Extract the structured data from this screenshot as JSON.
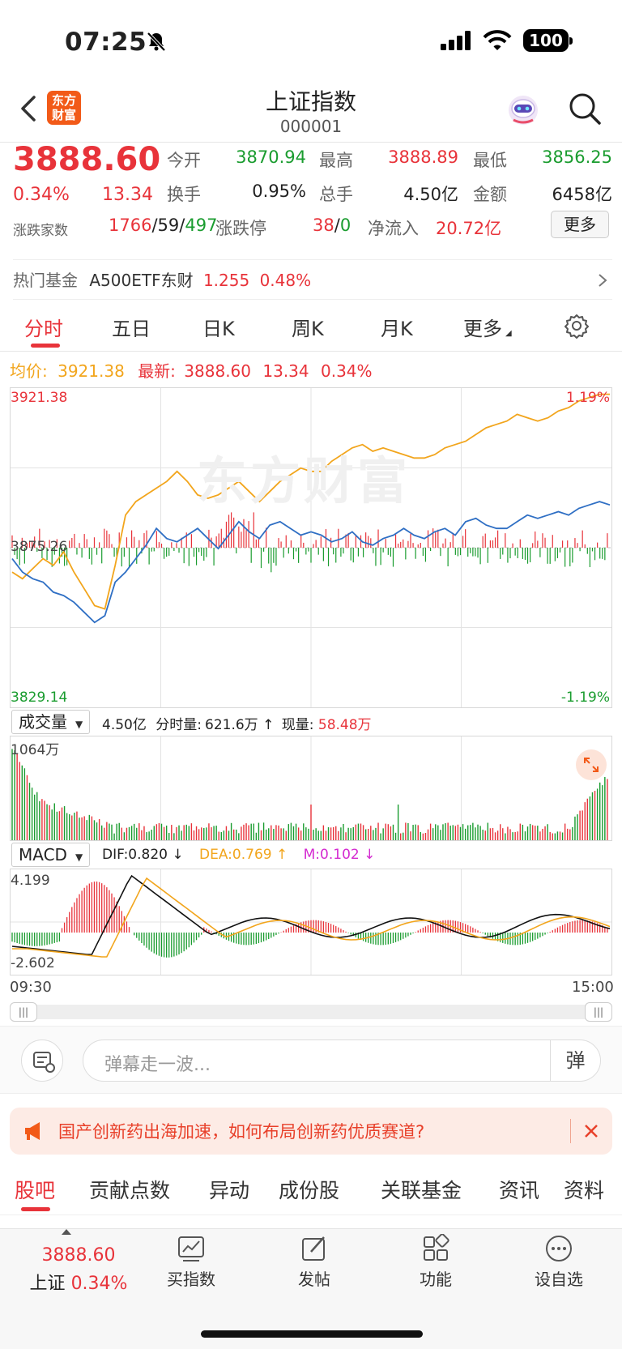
{
  "status_bar": {
    "time": "07:25",
    "battery": "100"
  },
  "header": {
    "title": "上证指数",
    "code": "000001",
    "logo_text": "东方财富"
  },
  "quote": {
    "price": "3888.60",
    "change_pct": "0.34%",
    "change": "13.34",
    "open_label": "今开",
    "open": "3870.94",
    "high_label": "最高",
    "high": "3888.89",
    "low_label": "最低",
    "low": "3856.25",
    "turnover_label": "换手",
    "turnover": "0.95%",
    "volume_label": "总手",
    "volume": "4.50亿",
    "amount_label": "金额",
    "amount": "6458亿",
    "breadth_label": "涨跌家数",
    "up_count": "1766",
    "flat_count": "59",
    "down_count": "497",
    "limit_label": "涨跌停",
    "limit_up": "38",
    "limit_down": "0",
    "netflow_label": "净流入",
    "netflow": "20.72亿",
    "more_button": "更多"
  },
  "hot_fund": {
    "label": "热门基金",
    "name": "A500ETF东财",
    "price": "1.255",
    "pct": "0.48%"
  },
  "chart_tabs": [
    "分时",
    "五日",
    "日K",
    "周K",
    "月K",
    "更多"
  ],
  "avg_line": {
    "avg_label": "均价:",
    "avg": "3921.38",
    "latest_label": "最新:",
    "latest": "3888.60",
    "change": "13.34",
    "pct": "0.34%"
  },
  "volume_panel": {
    "selector": "成交量",
    "total": "4.50亿",
    "minute_label": "分时量:",
    "minute": "621.6万",
    "arrow": "↑",
    "current_label": "现量:",
    "current": "58.48万",
    "max_label": "1064万"
  },
  "macd_panel": {
    "selector": "MACD",
    "dif": "DIF:0.820 ↓",
    "dea": "DEA:0.769 ↑",
    "m": "M:0.102 ↓",
    "max_label": "4.199",
    "min_label": "-2.602"
  },
  "time_axis": {
    "start": "09:30",
    "end": "15:00"
  },
  "colors": {
    "up": "#e8333a",
    "down": "#1a9c2f",
    "avg_line": "#f2a51c",
    "price_line": "#2f6fc4",
    "accent": "#f25a18"
  },
  "chart_data": {
    "type": "line",
    "price_axis": {
      "max": "3921.38",
      "mid": "3875.26",
      "min": "3829.14",
      "max_pct": "1.19%",
      "min_pct": "-1.19%"
    },
    "ylim": [
      3829.14,
      3921.38
    ],
    "x_range": [
      "09:30",
      "15:00"
    ],
    "series": [
      {
        "name": "均价",
        "color": "#f2a51c",
        "values": [
          3868,
          3866,
          3869,
          3872,
          3870,
          3874,
          3868,
          3863,
          3858,
          3857,
          3870,
          3885,
          3889,
          3891,
          3893,
          3895,
          3898,
          3895,
          3891,
          3890,
          3891,
          3893,
          3895,
          3892,
          3889,
          3892,
          3895,
          3897,
          3899,
          3898,
          3898,
          3901,
          3903,
          3905,
          3906,
          3904,
          3905,
          3904,
          3903,
          3902,
          3902,
          3903,
          3905,
          3906,
          3907,
          3909,
          3911,
          3912,
          3913,
          3915,
          3914,
          3913,
          3914,
          3916,
          3917,
          3919,
          3920,
          3921,
          3921
        ]
      },
      {
        "name": "最新",
        "color": "#2f6fc4",
        "values": [
          3872,
          3868,
          3866,
          3865,
          3862,
          3861,
          3859,
          3856,
          3853,
          3855,
          3865,
          3868,
          3872,
          3876,
          3881,
          3878,
          3877,
          3879,
          3881,
          3878,
          3875,
          3879,
          3883,
          3880,
          3878,
          3882,
          3883,
          3881,
          3879,
          3880,
          3879,
          3877,
          3878,
          3880,
          3877,
          3876,
          3878,
          3879,
          3881,
          3879,
          3878,
          3880,
          3881,
          3879,
          3883,
          3884,
          3882,
          3881,
          3881,
          3883,
          3885,
          3884,
          3885,
          3886,
          3885,
          3887,
          3888,
          3889,
          3888
        ]
      }
    ],
    "volume_max": "1064万",
    "macd_range": [
      -2.602,
      4.199
    ]
  },
  "danmu": {
    "placeholder": "弹幕走一波...",
    "send": "弹"
  },
  "ad": {
    "text": "国产创新药出海加速，如何布局创新药优质赛道?"
  },
  "sub_tabs": [
    "股吧",
    "贡献点数",
    "异动",
    "成份股",
    "关联基金",
    "资讯",
    "资料"
  ],
  "bottom_bar": {
    "price": "3888.60",
    "name": "上证",
    "pct": "0.34%",
    "items": [
      "买指数",
      "发帖",
      "功能",
      "设自选"
    ]
  }
}
